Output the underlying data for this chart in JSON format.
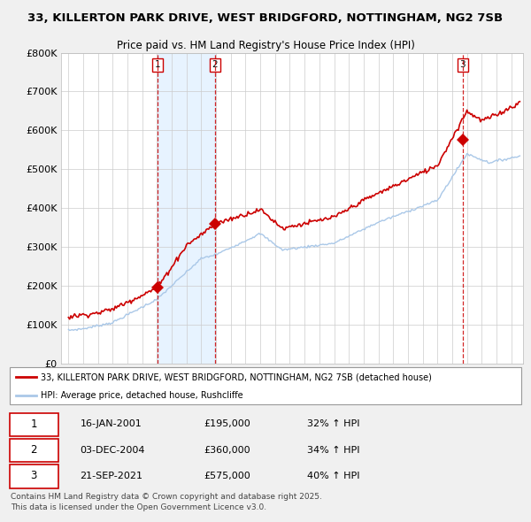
{
  "title_line1": "33, KILLERTON PARK DRIVE, WEST BRIDGFORD, NOTTINGHAM, NG2 7SB",
  "title_line2": "Price paid vs. HM Land Registry's House Price Index (HPI)",
  "background_color": "#f0f0f0",
  "plot_bg_color": "#ffffff",
  "sale_dates_num": [
    2001.04,
    2004.92,
    2021.72
  ],
  "sale_prices": [
    195000,
    360000,
    575000
  ],
  "sale_labels": [
    "1",
    "2",
    "3"
  ],
  "vline_color": "#cc0000",
  "hpi_line_color": "#aac8e8",
  "price_line_color": "#cc0000",
  "shade_color": "#ddeeff",
  "legend_entries": [
    "33, KILLERTON PARK DRIVE, WEST BRIDGFORD, NOTTINGHAM, NG2 7SB (detached house)",
    "HPI: Average price, detached house, Rushcliffe"
  ],
  "table_rows": [
    [
      "1",
      "16-JAN-2001",
      "£195,000",
      "32% ↑ HPI"
    ],
    [
      "2",
      "03-DEC-2004",
      "£360,000",
      "34% ↑ HPI"
    ],
    [
      "3",
      "21-SEP-2021",
      "£575,000",
      "40% ↑ HPI"
    ]
  ],
  "footer_text": "Contains HM Land Registry data © Crown copyright and database right 2025.\nThis data is licensed under the Open Government Licence v3.0.",
  "ylim": [
    0,
    800000
  ],
  "xlim_start": 1994.5,
  "xlim_end": 2025.8,
  "yticks": [
    0,
    100000,
    200000,
    300000,
    400000,
    500000,
    600000,
    700000,
    800000
  ],
  "ytick_labels": [
    "£0",
    "£100K",
    "£200K",
    "£300K",
    "£400K",
    "£500K",
    "£600K",
    "£700K",
    "£800K"
  ]
}
